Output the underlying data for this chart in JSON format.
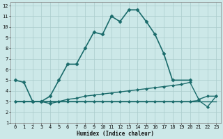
{
  "xlabel": "Humidex (Indice chaleur)",
  "bg_color": "#cce8e8",
  "grid_color": "#aacccc",
  "line_color": "#1a6b6b",
  "xlim": [
    -0.5,
    23.5
  ],
  "ylim": [
    1,
    12.3
  ],
  "xticks": [
    0,
    1,
    2,
    3,
    4,
    5,
    6,
    7,
    8,
    9,
    10,
    11,
    12,
    13,
    14,
    15,
    16,
    17,
    18,
    19,
    20,
    21,
    22,
    23
  ],
  "yticks": [
    1,
    2,
    3,
    4,
    5,
    6,
    7,
    8,
    9,
    10,
    11,
    12
  ],
  "series": [
    {
      "x": [
        0,
        1,
        2,
        3,
        4,
        5,
        6,
        7,
        8,
        9,
        10,
        11,
        12,
        13,
        14,
        15,
        16,
        17,
        18,
        20
      ],
      "y": [
        5.0,
        4.8,
        3.0,
        3.0,
        3.5,
        5.0,
        6.5,
        6.5,
        8.0,
        9.5,
        9.3,
        11.0,
        10.5,
        11.6,
        11.6,
        10.5,
        9.3,
        7.5,
        5.0,
        5.0
      ],
      "marker": "D",
      "markersize": 2.5,
      "linewidth": 1.2
    },
    {
      "x": [
        0,
        1,
        2,
        3,
        4,
        5,
        6,
        7,
        8,
        9,
        10,
        11,
        12,
        13,
        14,
        15,
        16,
        17,
        18,
        19,
        20,
        21,
        22,
        23
      ],
      "y": [
        3.0,
        3.0,
        3.0,
        3.0,
        3.0,
        3.0,
        3.2,
        3.3,
        3.5,
        3.6,
        3.7,
        3.8,
        3.9,
        4.0,
        4.1,
        4.2,
        4.3,
        4.4,
        4.5,
        4.6,
        4.8,
        3.2,
        3.5,
        3.5
      ],
      "marker": "D",
      "markersize": 2.0,
      "linewidth": 1.0
    },
    {
      "x": [
        0,
        23
      ],
      "y": [
        3.0,
        3.0
      ],
      "marker": null,
      "markersize": 0,
      "linewidth": 1.0
    },
    {
      "x": [
        0,
        1,
        2,
        3,
        4,
        5,
        6,
        7,
        8,
        9,
        10,
        11,
        12,
        13,
        14,
        15,
        16,
        17,
        18,
        19,
        20,
        21,
        22,
        23
      ],
      "y": [
        3.0,
        3.0,
        3.0,
        3.0,
        2.8,
        3.0,
        3.0,
        3.0,
        3.0,
        3.0,
        3.0,
        3.0,
        3.0,
        3.0,
        3.0,
        3.0,
        3.0,
        3.0,
        3.0,
        3.0,
        3.0,
        3.1,
        2.5,
        3.5
      ],
      "marker": "D",
      "markersize": 2.0,
      "linewidth": 1.0
    }
  ]
}
